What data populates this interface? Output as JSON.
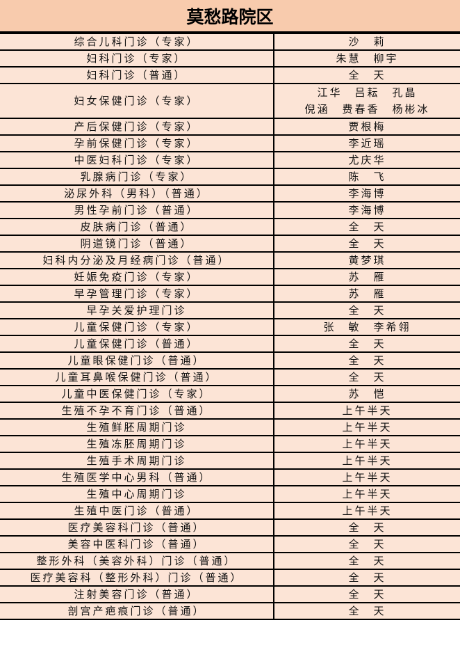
{
  "title": "莫愁路院区",
  "rows": [
    {
      "clinic": "综合儿科门诊（专家）",
      "doctor": [
        "沙　莉"
      ]
    },
    {
      "clinic": "妇科门诊（专家）",
      "doctor": [
        "朱慧　柳宇"
      ]
    },
    {
      "clinic": "妇科门诊（普通）",
      "doctor": [
        "全　天"
      ]
    },
    {
      "clinic": "妇女保健门诊（专家）",
      "doctor": [
        "江华　吕耘　孔晶",
        "倪涵　费春香　杨彬冰"
      ]
    },
    {
      "clinic": "产后保健门诊（专家）",
      "doctor": [
        "贾根梅"
      ]
    },
    {
      "clinic": "孕前保健门诊（专家）",
      "doctor": [
        "李近瑶"
      ]
    },
    {
      "clinic": "中医妇科门诊（专家）",
      "doctor": [
        "尤庆华"
      ]
    },
    {
      "clinic": "乳腺病门诊（专家）",
      "doctor": [
        "陈　飞"
      ]
    },
    {
      "clinic": "泌尿外科（男科）（普通）",
      "doctor": [
        "李海博"
      ]
    },
    {
      "clinic": "男性孕前门诊（普通）",
      "doctor": [
        "李海博"
      ]
    },
    {
      "clinic": "皮肤病门诊（普通）",
      "doctor": [
        "全　天"
      ]
    },
    {
      "clinic": "阴道镜门诊（普通）",
      "doctor": [
        "全　天"
      ]
    },
    {
      "clinic": "妇科内分泌及月经病门诊（普通）",
      "doctor": [
        "黄梦琪"
      ]
    },
    {
      "clinic": "妊娠免疫门诊（专家）",
      "doctor": [
        "苏　雁"
      ]
    },
    {
      "clinic": "早孕管理门诊（专家）",
      "doctor": [
        "苏　雁"
      ]
    },
    {
      "clinic": "早孕关爱护理门诊",
      "doctor": [
        "全　天"
      ]
    },
    {
      "clinic": "儿童保健门诊（专家）",
      "doctor": [
        "张　敏　李希翎"
      ]
    },
    {
      "clinic": "儿童保健门诊（普通）",
      "doctor": [
        "全　天"
      ]
    },
    {
      "clinic": "儿童眼保健门诊（普通）",
      "doctor": [
        "全　天"
      ]
    },
    {
      "clinic": "儿童耳鼻喉保健门诊（普通）",
      "doctor": [
        "全　天"
      ]
    },
    {
      "clinic": "儿童中医保健门诊（专家）",
      "doctor": [
        "苏　恺"
      ]
    },
    {
      "clinic": "生殖不孕不育门诊（普通）",
      "doctor": [
        "上午半天"
      ]
    },
    {
      "clinic": "生殖鲜胚周期门诊",
      "doctor": [
        "上午半天"
      ]
    },
    {
      "clinic": "生殖冻胚周期门诊",
      "doctor": [
        "上午半天"
      ]
    },
    {
      "clinic": "生殖手术周期门诊",
      "doctor": [
        "上午半天"
      ]
    },
    {
      "clinic": "生殖医学中心男科（普通）",
      "doctor": [
        "上午半天"
      ]
    },
    {
      "clinic": "生殖中心周期门诊",
      "doctor": [
        "上午半天"
      ]
    },
    {
      "clinic": "生殖中医门诊（普通）",
      "doctor": [
        "上午半天"
      ]
    },
    {
      "clinic": "医疗美容科门诊（普通）",
      "doctor": [
        "全　天"
      ]
    },
    {
      "clinic": "美容中医科门诊（普通）",
      "doctor": [
        "全　天"
      ]
    },
    {
      "clinic": "整形外科（美容外科）门诊（普通）",
      "doctor": [
        "全　天"
      ]
    },
    {
      "clinic": "医疗美容科（整形外科）门诊（普通）",
      "doctor": [
        "全　天"
      ]
    },
    {
      "clinic": "注射美容门诊（普通）",
      "doctor": [
        "全　天"
      ]
    },
    {
      "clinic": "剖宫产疤痕门诊（普通）",
      "doctor": [
        "全　天"
      ]
    }
  ]
}
